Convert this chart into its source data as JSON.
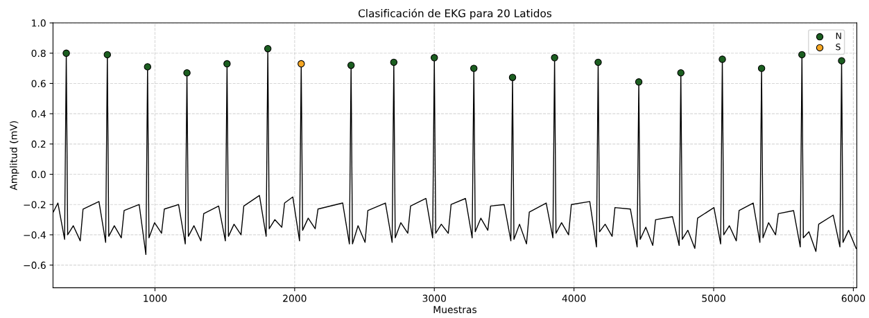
{
  "chart_data": {
    "type": "line",
    "title": "Clasificación de EKG para 20 Latidos",
    "xlabel": "Muestras",
    "ylabel": "Amplitud (mV)",
    "xlim": [
      270,
      6025
    ],
    "ylim": [
      -0.75,
      1.0
    ],
    "xticks": [
      1000,
      2000,
      3000,
      4000,
      5000,
      6000
    ],
    "yticks": [
      {
        "value": -0.6,
        "label": "−0.6"
      },
      {
        "value": -0.4,
        "label": "−0.4"
      },
      {
        "value": -0.2,
        "label": "−0.2"
      },
      {
        "value": 0,
        "label": "0.0"
      },
      {
        "value": 0.2,
        "label": "0.2"
      },
      {
        "value": 0.4,
        "label": "0.4"
      },
      {
        "value": 0.6,
        "label": "0.6"
      },
      {
        "value": 0.8,
        "label": "0.8"
      },
      {
        "value": 1,
        "label": "1.0"
      }
    ],
    "grid": true,
    "legend": "top right",
    "series": [
      {
        "color": "#000000",
        "x": [
          272,
          305,
          353,
          365,
          375,
          415,
          465,
          485,
          599,
          647,
          659,
          669,
          709,
          759,
          779,
          887,
          935,
          947,
          957,
          997,
          1047,
          1067,
          1169,
          1217,
          1229,
          1239,
          1279,
          1329,
          1349,
          1456,
          1504,
          1516,
          1526,
          1566,
          1616,
          1636,
          1748,
          1796,
          1808,
          1818,
          1858,
          1908,
          1928,
          1987,
          2035,
          2047,
          2057,
          2097,
          2147,
          2167,
          2344,
          2392,
          2404,
          2414,
          2454,
          2504,
          2524,
          2650,
          2698,
          2710,
          2720,
          2760,
          2810,
          2830,
          2940,
          2988,
          3000,
          3010,
          3050,
          3100,
          3120,
          3223,
          3271,
          3283,
          3293,
          3333,
          3383,
          3403,
          3500,
          3548,
          3560,
          3570,
          3610,
          3660,
          3680,
          3801,
          3849,
          3861,
          3871,
          3911,
          3961,
          3981,
          4113,
          4161,
          4173,
          4183,
          4223,
          4273,
          4293,
          4404,
          4452,
          4464,
          4474,
          4514,
          4564,
          4584,
          4705,
          4753,
          4765,
          4775,
          4815,
          4865,
          4885,
          5002,
          5050,
          5062,
          5072,
          5112,
          5162,
          5182,
          5283,
          5331,
          5343,
          5353,
          5393,
          5443,
          5463,
          5572,
          5620,
          5632,
          5642,
          5682,
          5732,
          5752,
          5856,
          5904,
          5916,
          5926,
          5966,
          6020
        ],
        "values": [
          -0.25,
          -0.19,
          -0.43,
          0.8,
          -0.4,
          -0.34,
          -0.44,
          -0.23,
          -0.18,
          -0.45,
          0.79,
          -0.41,
          -0.34,
          -0.42,
          -0.24,
          -0.2,
          -0.53,
          0.71,
          -0.42,
          -0.32,
          -0.39,
          -0.23,
          -0.2,
          -0.46,
          0.67,
          -0.41,
          -0.34,
          -0.44,
          -0.26,
          -0.21,
          -0.44,
          0.73,
          -0.41,
          -0.33,
          -0.4,
          -0.21,
          -0.14,
          -0.41,
          0.83,
          -0.36,
          -0.3,
          -0.35,
          -0.19,
          -0.15,
          -0.44,
          0.73,
          -0.37,
          -0.29,
          -0.36,
          -0.23,
          -0.19,
          -0.46,
          0.72,
          -0.46,
          -0.34,
          -0.45,
          -0.24,
          -0.19,
          -0.45,
          0.74,
          -0.42,
          -0.32,
          -0.39,
          -0.21,
          -0.16,
          -0.42,
          0.77,
          -0.39,
          -0.33,
          -0.39,
          -0.2,
          -0.16,
          -0.42,
          0.7,
          -0.38,
          -0.29,
          -0.37,
          -0.21,
          -0.2,
          -0.44,
          0.64,
          -0.43,
          -0.33,
          -0.46,
          -0.25,
          -0.19,
          -0.42,
          0.77,
          -0.39,
          -0.32,
          -0.4,
          -0.2,
          -0.18,
          -0.48,
          0.74,
          -0.38,
          -0.33,
          -0.41,
          -0.22,
          -0.23,
          -0.48,
          0.61,
          -0.43,
          -0.35,
          -0.47,
          -0.3,
          -0.28,
          -0.47,
          0.67,
          -0.43,
          -0.37,
          -0.49,
          -0.29,
          -0.22,
          -0.46,
          0.76,
          -0.4,
          -0.34,
          -0.44,
          -0.24,
          -0.19,
          -0.45,
          0.7,
          -0.42,
          -0.32,
          -0.4,
          -0.26,
          -0.24,
          -0.48,
          0.79,
          -0.42,
          -0.38,
          -0.51,
          -0.33,
          -0.27,
          -0.48,
          0.75,
          -0.45,
          -0.37,
          -0.49
        ]
      },
      {
        "type": "scatter",
        "name": "N",
        "color": "#1b5e20",
        "marker": "circle",
        "x": [
          365,
          659,
          947,
          1229,
          1516,
          1808,
          2404,
          2710,
          3000,
          3283,
          3560,
          3861,
          4173,
          4464,
          4765,
          5062,
          5343,
          5632,
          5916
        ],
        "values": [
          0.8,
          0.79,
          0.71,
          0.67,
          0.73,
          0.83,
          0.72,
          0.74,
          0.77,
          0.7,
          0.64,
          0.77,
          0.74,
          0.61,
          0.67,
          0.76,
          0.7,
          0.79,
          0.75
        ]
      },
      {
        "type": "scatter",
        "name": "S",
        "color": "#f5a623",
        "marker": "circle",
        "x": [
          2047
        ],
        "values": [
          0.73
        ]
      }
    ]
  }
}
